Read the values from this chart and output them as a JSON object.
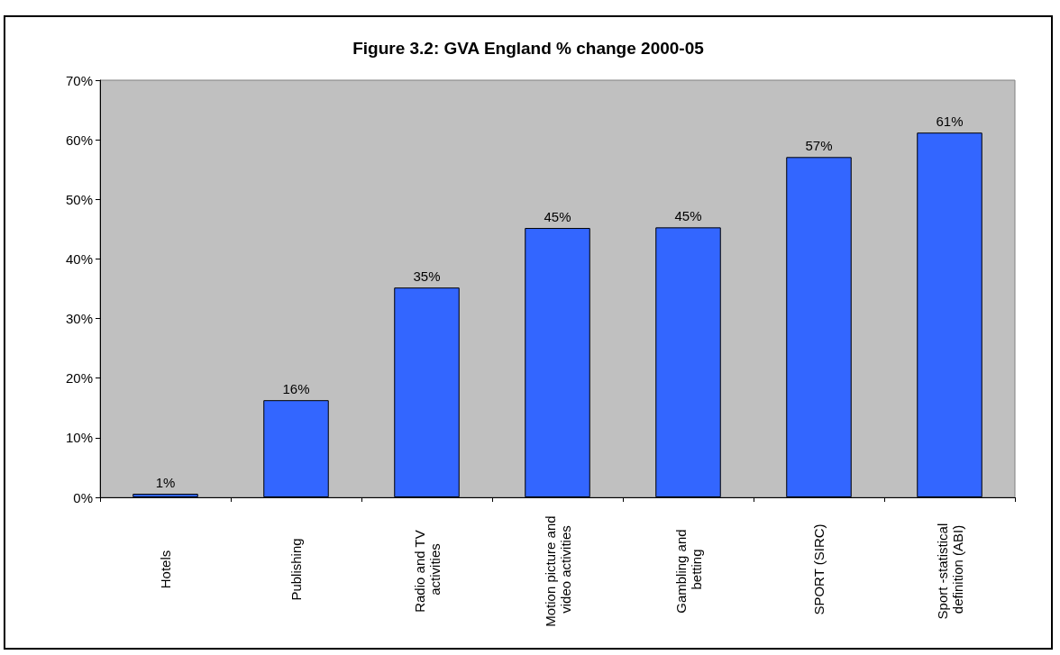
{
  "chart_data": {
    "type": "bar",
    "title": "Figure 3.2: GVA England % change 2000-05",
    "categories": [
      "Hotels",
      "Publishing",
      "Radio and TV activities",
      "Motion picture and video activities",
      "Gambling and betting",
      "SPORT (SIRC)",
      "Sport -statistical definition (ABI)"
    ],
    "values": [
      0.6,
      16.3,
      35.2,
      45.2,
      45.3,
      57.1,
      61.2
    ],
    "value_labels": [
      "1%",
      "16%",
      "35%",
      "45%",
      "45%",
      "57%",
      "61%"
    ],
    "color": "#3366ff",
    "ylim": [
      0,
      70
    ],
    "yticks": [
      {
        "value": 0,
        "label": "0%"
      },
      {
        "value": 10,
        "label": "10%"
      },
      {
        "value": 20,
        "label": "20%"
      },
      {
        "value": 30,
        "label": "30%"
      },
      {
        "value": 40,
        "label": "40%"
      },
      {
        "value": 50,
        "label": "50%"
      },
      {
        "value": 60,
        "label": "60%"
      },
      {
        "value": 70,
        "label": "70%"
      }
    ]
  }
}
